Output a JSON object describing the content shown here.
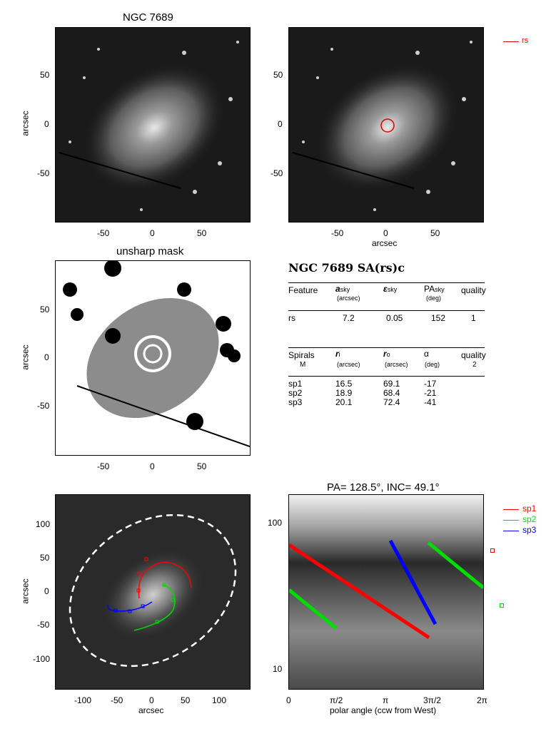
{
  "panels": {
    "p1": {
      "title": "NGC 7689",
      "ylabel": "arcsec",
      "xticks": [
        "-50",
        "0",
        "50"
      ],
      "yticks": [
        "50",
        "0",
        "-50"
      ]
    },
    "p2": {
      "xlabel": "arcsec",
      "xticks": [
        "-50",
        "0",
        "50"
      ],
      "yticks": [
        "50",
        "0",
        "-50"
      ],
      "legend": "rs"
    },
    "p3": {
      "title": "unsharp mask",
      "ylabel": "arcsec",
      "xticks": [
        "-50",
        "0",
        "50"
      ],
      "yticks": [
        "50",
        "0",
        "-50"
      ]
    },
    "p5": {
      "xlabel": "arcsec",
      "ylabel": "arcsec",
      "xticks": [
        "-100",
        "-50",
        "0",
        "50",
        "100"
      ],
      "yticks": [
        "100",
        "50",
        "0",
        "-50",
        "-100"
      ]
    },
    "p6": {
      "title": "PA= 128.5°, INC= 49.1°",
      "xlabel": "polar angle (ccw from West)",
      "xticks": [
        "0",
        "π/2",
        "π",
        "3π/2",
        "2π"
      ],
      "yticks": [
        "100",
        "10"
      ],
      "legend": [
        "sp1",
        "sp2",
        "sp3"
      ]
    }
  },
  "table": {
    "heading": "NGC 7689  SA(rs)c",
    "feature_header": {
      "c1": "Feature",
      "c2": "a",
      "c2sub": "sky",
      "c2unit": "(arcsec)",
      "c3": "ε",
      "c3sub": "sky",
      "c4": "PA",
      "c4sub": "sky",
      "c4unit": "(deg)",
      "c5": "quality"
    },
    "feature_row": {
      "name": "rs",
      "a": "7.2",
      "e": "0.05",
      "pa": "152",
      "q": "1"
    },
    "spiral_header": {
      "c1": "Spirals",
      "c1b": "M",
      "c2": "r",
      "c2sub": "i",
      "c2unit": "(arcsec)",
      "c3": "r",
      "c3sub": "o",
      "c3unit": "(arcsec)",
      "c4": "α",
      "c4unit": "(deg)",
      "c5": "quality",
      "c5b": "2"
    },
    "spirals": [
      {
        "name": "sp1",
        "ri": "16.5",
        "ro": "69.1",
        "alpha": "-17"
      },
      {
        "name": "sp2",
        "ri": "18.9",
        "ro": "68.4",
        "alpha": "-21"
      },
      {
        "name": "sp3",
        "ri": "20.1",
        "ro": "72.4",
        "alpha": "-41"
      }
    ]
  },
  "colors": {
    "sp1": "#ff0000",
    "sp2": "#00dd00",
    "sp3": "#0000ff",
    "rs": "#dd0000"
  }
}
